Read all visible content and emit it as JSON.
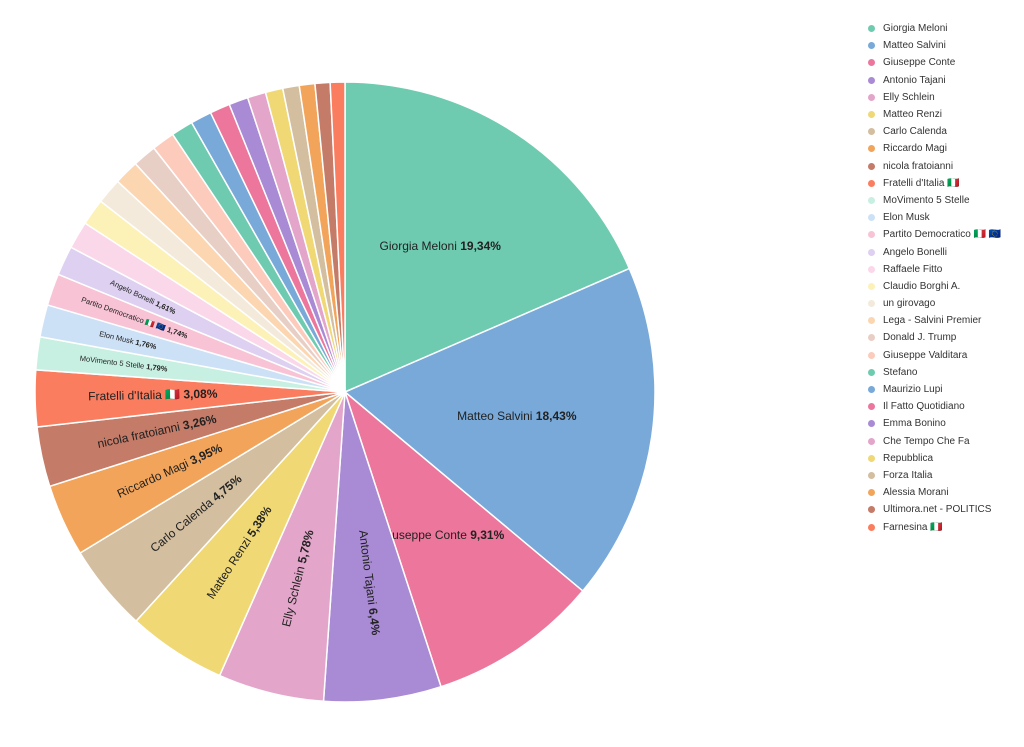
{
  "chart_data": {
    "type": "pie",
    "legend_position": "right",
    "slices": [
      {
        "name": "Giorgia Meloni",
        "value": 19.34,
        "value_label": "19,34%",
        "color": "#6ecbb0"
      },
      {
        "name": "Matteo Salvini",
        "value": 18.43,
        "value_label": "18,43%",
        "color": "#78a9d8"
      },
      {
        "name": "Giuseppe Conte",
        "value": 9.31,
        "value_label": "9,31%",
        "color": "#ec769c"
      },
      {
        "name": "Antonio Tajani",
        "value": 6.4,
        "value_label": "6,4%",
        "color": "#a98ad4"
      },
      {
        "name": "Elly Schlein",
        "value": 5.78,
        "value_label": "5,78%",
        "color": "#e3a6ca"
      },
      {
        "name": "Matteo Renzi",
        "value": 5.38,
        "value_label": "5,38%",
        "color": "#f0d874"
      },
      {
        "name": "Carlo Calenda",
        "value": 4.75,
        "value_label": "4,75%",
        "color": "#d3bea0"
      },
      {
        "name": "Riccardo Magi",
        "value": 3.95,
        "value_label": "3,95%",
        "color": "#f2a55a"
      },
      {
        "name": "nicola fratoianni",
        "value": 3.26,
        "value_label": "3,26%",
        "color": "#c47b68"
      },
      {
        "name": "Fratelli d'Italia 🇮🇹",
        "value": 3.08,
        "value_label": "3,08%",
        "color": "#fb7d5f"
      },
      {
        "name": "MoVimento 5 Stelle",
        "value": 1.79,
        "value_label": "1,79%",
        "color": "#c8f0e2"
      },
      {
        "name": "Elon Musk",
        "value": 1.76,
        "value_label": "1,76%",
        "color": "#cde1f6"
      },
      {
        "name": "Partito Democratico 🇮🇹 🇪🇺",
        "value": 1.74,
        "value_label": "1,74%",
        "color": "#f9c3d6"
      },
      {
        "name": "Angelo Bonelli",
        "value": 1.61,
        "value_label": "1,61%",
        "color": "#ddd0f1"
      },
      {
        "name": "Raffaele Fitto",
        "value": 1.5,
        "value_label": "",
        "color": "#fbd7ea"
      },
      {
        "name": "Claudio Borghi A.",
        "value": 1.45,
        "value_label": "",
        "color": "#fcf1b7"
      },
      {
        "name": "un girovago",
        "value": 1.4,
        "value_label": "",
        "color": "#f3eadb"
      },
      {
        "name": "Lega - Salvini Premier",
        "value": 1.35,
        "value_label": "",
        "color": "#fcd6b1"
      },
      {
        "name": "Donald J. Trump",
        "value": 1.3,
        "value_label": "",
        "color": "#e8cfc6"
      },
      {
        "name": "Giuseppe Valditara",
        "value": 1.25,
        "value_label": "",
        "color": "#fccbbc"
      },
      {
        "name": "Stefano",
        "value": 1.2,
        "value_label": "",
        "color": "#6ecbb0"
      },
      {
        "name": "Maurizio Lupi",
        "value": 1.15,
        "value_label": "",
        "color": "#78a9d8"
      },
      {
        "name": "Il Fatto Quotidiano",
        "value": 1.1,
        "value_label": "",
        "color": "#ec769c"
      },
      {
        "name": "Emma Bonino",
        "value": 1.05,
        "value_label": "",
        "color": "#a98ad4"
      },
      {
        "name": "Che Tempo Che Fa",
        "value": 1.0,
        "value_label": "",
        "color": "#e3a6ca"
      },
      {
        "name": "Repubblica",
        "value": 0.95,
        "value_label": "",
        "color": "#f0d874"
      },
      {
        "name": "Forza Italia",
        "value": 0.9,
        "value_label": "",
        "color": "#d3bea0"
      },
      {
        "name": "Alessia Morani",
        "value": 0.85,
        "value_label": "",
        "color": "#f2a55a"
      },
      {
        "name": "Ultimora.net - POLITICS",
        "value": 0.82,
        "value_label": "",
        "color": "#c47b68"
      },
      {
        "name": "Farnesina 🇮🇹",
        "value": 0.8,
        "value_label": "",
        "color": "#fb7d5f"
      }
    ]
  }
}
